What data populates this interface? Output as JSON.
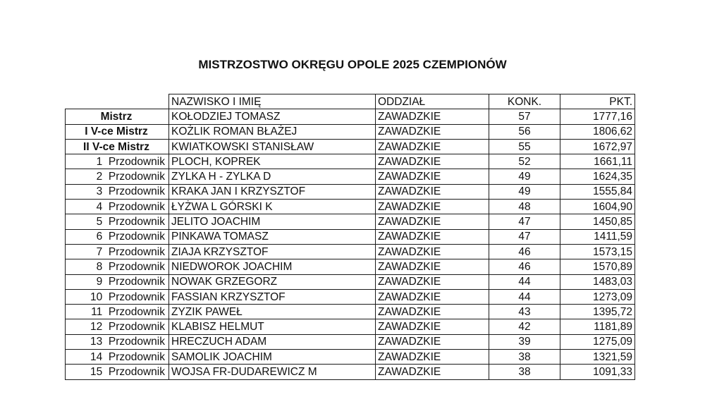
{
  "title": "MISTRZOSTWO OKRĘGU OPOLE 2025 CZEMPIONÓW",
  "table": {
    "headers": [
      "",
      "NAZWISKO I IMIĘ",
      "ODDZIAŁ",
      "KONK.",
      "PKT."
    ],
    "rows": [
      {
        "rank": "Mistrz",
        "name": "KOŁODZIEJ TOMASZ",
        "branch": "ZAWADZKIE",
        "konk": "57",
        "pkt": "1777,16",
        "bold": true
      },
      {
        "rank": "I V-ce Mistrz",
        "name": "KOŻLIK ROMAN BŁAŻEJ",
        "branch": "ZAWADZKIE",
        "konk": "56",
        "pkt": "1806,62",
        "bold": true
      },
      {
        "rank": "II V-ce Mistrz",
        "name": "KWIATKOWSKI STANISŁAW",
        "branch": "ZAWADZKIE",
        "konk": "55",
        "pkt": "1672,97",
        "bold": true
      },
      {
        "rank": "1  Przodownik",
        "name": "PLOCH, KOPREK",
        "branch": "ZAWADZKIE",
        "konk": "52",
        "pkt": "1661,11"
      },
      {
        "rank": "2  Przodownik",
        "name": "ZYLKA H - ZYLKA D",
        "branch": "ZAWADZKIE",
        "konk": "49",
        "pkt": "1624,35"
      },
      {
        "rank": "3  Przodownik",
        "name": "KRAKA JAN I KRZYSZTOF",
        "branch": "ZAWADZKIE",
        "konk": "49",
        "pkt": "1555,84"
      },
      {
        "rank": "4  Przodownik",
        "name": "ŁYŻWA L GÓRSKI K",
        "branch": "ZAWADZKIE",
        "konk": "48",
        "pkt": "1604,90"
      },
      {
        "rank": "5  Przodownik",
        "name": "JELITO JOACHIM",
        "branch": "ZAWADZKIE",
        "konk": "47",
        "pkt": "1450,85"
      },
      {
        "rank": "6  Przodownik",
        "name": "PINKAWA TOMASZ",
        "branch": "ZAWADZKIE",
        "konk": "47",
        "pkt": "1411,59"
      },
      {
        "rank": "7  Przodownik",
        "name": "ZIAJA KRZYSZTOF",
        "branch": "ZAWADZKIE",
        "konk": "46",
        "pkt": "1573,15"
      },
      {
        "rank": "8  Przodownik",
        "name": "NIEDWOROK JOACHIM",
        "branch": "ZAWADZKIE",
        "konk": "46",
        "pkt": "1570,89"
      },
      {
        "rank": "9  Przodownik",
        "name": "NOWAK GRZEGORZ",
        "branch": "ZAWADZKIE",
        "konk": "44",
        "pkt": "1483,03"
      },
      {
        "rank": "10  Przodownik",
        "name": "FASSIAN KRZYSZTOF",
        "branch": "ZAWADZKIE",
        "konk": "44",
        "pkt": "1273,09"
      },
      {
        "rank": "11  Przodownik",
        "name": "ZYZIK PAWEŁ",
        "branch": "ZAWADZKIE",
        "konk": "43",
        "pkt": "1395,72"
      },
      {
        "rank": "12  Przodownik",
        "name": "KLABISZ HELMUT",
        "branch": "ZAWADZKIE",
        "konk": "42",
        "pkt": "1181,89"
      },
      {
        "rank": "13  Przodownik",
        "name": "HRECZUCH ADAM",
        "branch": "ZAWADZKIE",
        "konk": "39",
        "pkt": "1275,09"
      },
      {
        "rank": "14  Przodownik",
        "name": "SAMOLIK JOACHIM",
        "branch": "ZAWADZKIE",
        "konk": "38",
        "pkt": "1321,59"
      },
      {
        "rank": "15  Przodownik",
        "name": "WOJSA FR-DUDAREWICZ M",
        "branch": "ZAWADZKIE",
        "konk": "38",
        "pkt": "1091,33"
      }
    ]
  }
}
